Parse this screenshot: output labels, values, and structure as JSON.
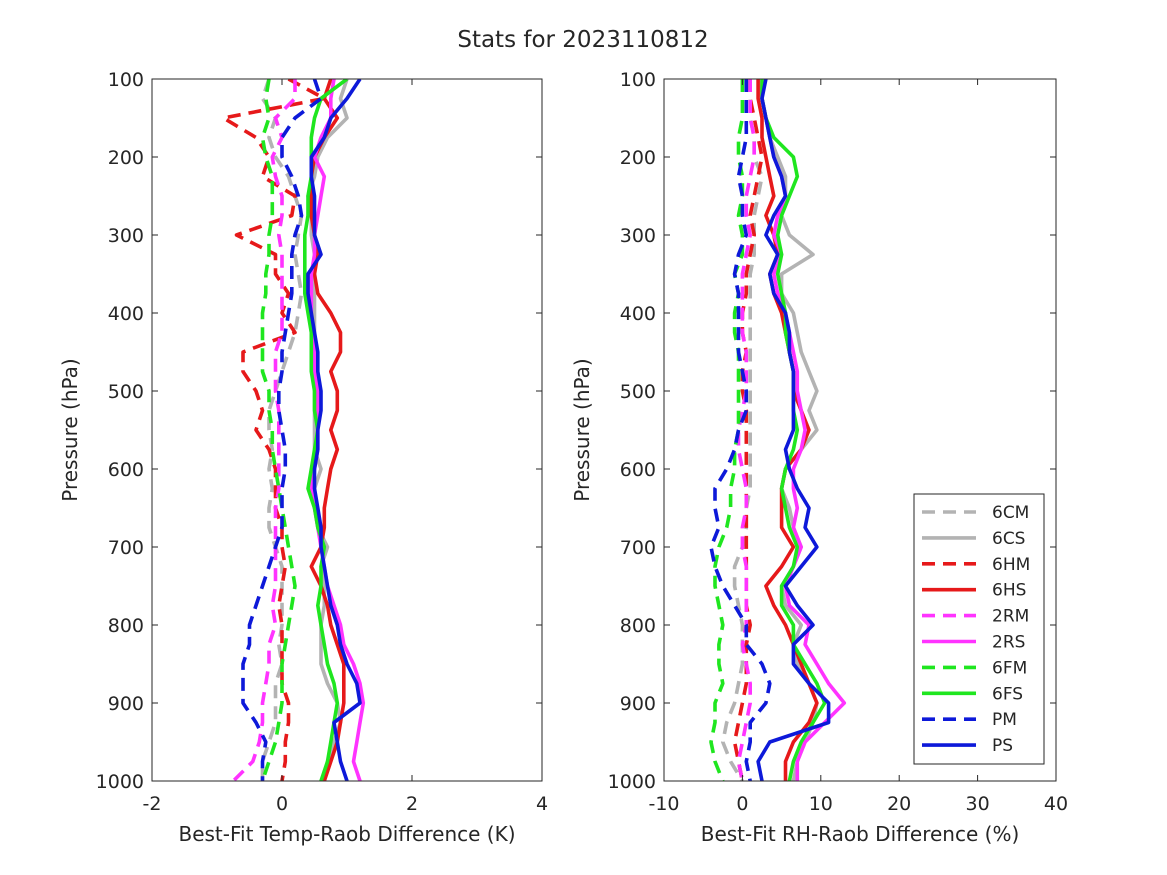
{
  "figure": {
    "title": "Stats for 2023110812"
  },
  "styles": {
    "6CM": {
      "color": "#b3b3b3",
      "dash": true
    },
    "6CS": {
      "color": "#b3b3b3",
      "dash": false
    },
    "6HM": {
      "color": "#e6191a",
      "dash": true
    },
    "6HS": {
      "color": "#e6191a",
      "dash": false
    },
    "2RM": {
      "color": "#ff33ff",
      "dash": true
    },
    "2RS": {
      "color": "#ff33ff",
      "dash": false
    },
    "6FM": {
      "color": "#1fe61f",
      "dash": true
    },
    "6FS": {
      "color": "#1fe61f",
      "dash": false
    },
    "PM": {
      "color": "#0d19d9",
      "dash": true
    },
    "PS": {
      "color": "#0d19d9",
      "dash": false
    }
  },
  "legend": {
    "entries": [
      "6CM",
      "6CS",
      "6HM",
      "6HS",
      "2RM",
      "2RS",
      "6FM",
      "6FS",
      "PM",
      "PS"
    ],
    "placement": "bottom-right of right panel"
  },
  "chart_data": [
    {
      "type": "line",
      "xlabel": "Best-Fit Temp-Raob Difference (K)",
      "ylabel": "Pressure (hPa)",
      "xlim": [
        -2,
        4
      ],
      "ylim": [
        100,
        1000
      ],
      "y_reversed": true,
      "xticks": [
        "-2",
        "0",
        "2",
        "4"
      ],
      "yticks": [
        "100",
        "200",
        "300",
        "400",
        "500",
        "600",
        "700",
        "800",
        "900",
        "1000"
      ],
      "p": [
        100,
        125,
        150,
        175,
        200,
        225,
        250,
        275,
        300,
        325,
        350,
        375,
        400,
        425,
        450,
        475,
        500,
        525,
        550,
        575,
        600,
        625,
        650,
        675,
        700,
        725,
        750,
        775,
        800,
        825,
        850,
        875,
        900,
        925,
        950,
        975,
        1000
      ],
      "series": [
        {
          "name": "6CM",
          "x": [
            -0.2,
            -0.3,
            -0.1,
            -0.2,
            -0.1,
            0.1,
            0.2,
            0.3,
            0.25,
            0.2,
            0.25,
            0.3,
            0.25,
            0.2,
            0.1,
            0.0,
            -0.1,
            -0.2,
            -0.2,
            -0.15,
            -0.2,
            -0.15,
            -0.2,
            -0.2,
            -0.1,
            0.0,
            0.0,
            0.0,
            0.0,
            -0.05,
            0.0,
            -0.1,
            -0.1,
            -0.1,
            -0.2,
            -0.3,
            -0.3
          ]
        },
        {
          "name": "6CS",
          "x": [
            1.0,
            0.9,
            1.0,
            0.7,
            0.55,
            0.5,
            0.4,
            0.45,
            0.45,
            0.5,
            0.5,
            0.5,
            0.5,
            0.5,
            0.5,
            0.5,
            0.5,
            0.5,
            0.5,
            0.5,
            0.6,
            0.5,
            0.5,
            0.55,
            0.7,
            0.6,
            0.65,
            0.65,
            0.6,
            0.6,
            0.6,
            0.7,
            0.85,
            0.9,
            0.8,
            0.7,
            0.65
          ]
        },
        {
          "name": "6HM",
          "x": [
            0.1,
            0.65,
            -0.9,
            -0.4,
            -0.2,
            -0.3,
            0.2,
            0.15,
            -0.7,
            -0.1,
            -0.1,
            0.1,
            0.0,
            0.2,
            -0.6,
            -0.6,
            -0.4,
            -0.3,
            -0.4,
            -0.2,
            -0.1,
            -0.1,
            -0.1,
            0.0,
            0.0,
            0.05,
            0.0,
            -0.05,
            0.0,
            0.0,
            0.0,
            0.0,
            0.1,
            0.1,
            0.05,
            0.05,
            0.0
          ]
        },
        {
          "name": "6HS",
          "x": [
            0.75,
            0.65,
            0.85,
            0.65,
            0.5,
            0.45,
            0.45,
            0.45,
            0.5,
            0.55,
            0.5,
            0.55,
            0.75,
            0.9,
            0.9,
            0.75,
            0.85,
            0.85,
            0.75,
            0.85,
            0.75,
            0.7,
            0.65,
            0.65,
            0.6,
            0.45,
            0.6,
            0.7,
            0.75,
            0.85,
            0.95,
            0.95,
            0.95,
            0.9,
            0.85,
            0.75,
            0.65
          ]
        },
        {
          "name": "2RM",
          "x": [
            0.2,
            0.2,
            -0.1,
            0.0,
            -0.15,
            -0.1,
            0.0,
            0.0,
            -0.05,
            0.0,
            0.0,
            0.0,
            0.0,
            0.0,
            -0.1,
            -0.1,
            -0.1,
            -0.05,
            -0.05,
            -0.05,
            -0.05,
            -0.05,
            -0.1,
            -0.1,
            -0.1,
            -0.1,
            -0.1,
            -0.15,
            -0.1,
            -0.2,
            -0.2,
            -0.25,
            -0.3,
            -0.3,
            -0.35,
            -0.45,
            -0.75
          ]
        },
        {
          "name": "2RS",
          "x": [
            0.8,
            0.75,
            0.75,
            0.6,
            0.5,
            0.65,
            0.6,
            0.55,
            0.5,
            0.5,
            0.45,
            0.45,
            0.45,
            0.45,
            0.5,
            0.5,
            0.55,
            0.55,
            0.55,
            0.55,
            0.5,
            0.45,
            0.5,
            0.55,
            0.6,
            0.65,
            0.7,
            0.8,
            0.9,
            0.95,
            1.1,
            1.2,
            1.25,
            1.2,
            1.15,
            1.1,
            1.2
          ]
        },
        {
          "name": "6FM",
          "x": [
            -0.2,
            -0.25,
            -0.2,
            -0.3,
            -0.25,
            -0.15,
            -0.15,
            -0.15,
            -0.2,
            -0.2,
            -0.25,
            -0.25,
            -0.3,
            -0.3,
            -0.3,
            -0.3,
            -0.2,
            -0.2,
            -0.15,
            -0.15,
            -0.1,
            -0.05,
            0.0,
            0.05,
            0.1,
            0.15,
            0.2,
            0.15,
            0.1,
            0.05,
            0.0,
            0.0,
            0.0,
            -0.05,
            -0.1,
            -0.2,
            -0.3
          ]
        },
        {
          "name": "6FS",
          "x": [
            1.0,
            0.6,
            0.5,
            0.45,
            0.45,
            0.45,
            0.4,
            0.4,
            0.35,
            0.35,
            0.35,
            0.35,
            0.4,
            0.45,
            0.45,
            0.45,
            0.5,
            0.5,
            0.55,
            0.5,
            0.45,
            0.4,
            0.5,
            0.55,
            0.65,
            0.6,
            0.6,
            0.55,
            0.6,
            0.65,
            0.7,
            0.8,
            0.85,
            0.8,
            0.75,
            0.7,
            0.6
          ]
        },
        {
          "name": "PM",
          "x": [
            0.5,
            0.6,
            0.2,
            0.0,
            0.0,
            0.15,
            0.25,
            0.3,
            0.2,
            0.15,
            0.15,
            0.15,
            0.1,
            0.05,
            0.0,
            0.0,
            -0.05,
            -0.05,
            0.0,
            0.05,
            0.05,
            0.0,
            0.0,
            0.0,
            -0.1,
            -0.2,
            -0.3,
            -0.4,
            -0.5,
            -0.5,
            -0.6,
            -0.6,
            -0.6,
            -0.4,
            -0.25,
            -0.3,
            -0.3
          ]
        },
        {
          "name": "PS",
          "x": [
            1.2,
            1.0,
            0.75,
            0.65,
            0.45,
            0.45,
            0.5,
            0.5,
            0.5,
            0.6,
            0.4,
            0.4,
            0.45,
            0.5,
            0.55,
            0.55,
            0.6,
            0.6,
            0.55,
            0.55,
            0.5,
            0.5,
            0.55,
            0.6,
            0.6,
            0.65,
            0.7,
            0.75,
            0.85,
            0.9,
            1.0,
            1.15,
            1.2,
            0.8,
            0.85,
            0.9,
            1.0
          ]
        }
      ]
    },
    {
      "type": "line",
      "xlabel": "Best-Fit RH-Raob Difference (%)",
      "ylabel": "Pressure (hPa)",
      "xlim": [
        -10,
        40
      ],
      "ylim": [
        100,
        1000
      ],
      "y_reversed": true,
      "xticks": [
        "-10",
        "0",
        "10",
        "20",
        "30",
        "40"
      ],
      "yticks": [
        "100",
        "200",
        "300",
        "400",
        "500",
        "600",
        "700",
        "800",
        "900",
        "1000"
      ],
      "p": [
        100,
        125,
        150,
        175,
        200,
        225,
        250,
        275,
        300,
        325,
        350,
        375,
        400,
        425,
        450,
        475,
        500,
        525,
        550,
        575,
        600,
        625,
        650,
        675,
        700,
        725,
        750,
        775,
        800,
        825,
        850,
        875,
        900,
        925,
        950,
        975,
        1000
      ],
      "series": [
        {
          "name": "6CM",
          "x": [
            0.5,
            1.0,
            1.0,
            1.5,
            1.5,
            2.5,
            2.0,
            1.5,
            1.5,
            1.5,
            1.0,
            1.0,
            1.0,
            1.0,
            1.0,
            1.0,
            1.0,
            1.0,
            1.0,
            1.0,
            1.0,
            1.0,
            0.5,
            0.5,
            0.0,
            -1.0,
            -1.0,
            -0.5,
            0.0,
            0.0,
            0.0,
            -0.5,
            -1.0,
            -2.0,
            -2.5,
            -1.5,
            0.0
          ]
        },
        {
          "name": "6CS",
          "x": [
            2.0,
            2.5,
            3.0,
            3.5,
            4.5,
            5.5,
            5.5,
            5.0,
            6.0,
            9.0,
            5.0,
            5.0,
            6.5,
            7.0,
            7.5,
            8.5,
            9.5,
            8.5,
            9.5,
            7.5,
            5.5,
            5.0,
            6.0,
            6.5,
            7.5,
            6.5,
            5.0,
            5.5,
            7.5,
            6.5,
            7.0,
            8.5,
            9.5,
            9.0,
            8.0,
            7.0,
            6.5
          ]
        },
        {
          "name": "6HM",
          "x": [
            1.0,
            1.0,
            1.5,
            2.0,
            2.5,
            2.0,
            1.5,
            1.0,
            1.5,
            1.0,
            0.5,
            0.5,
            0.0,
            0.0,
            0.5,
            0.0,
            0.0,
            0.5,
            0.5,
            0.5,
            0.5,
            0.5,
            0.5,
            0.5,
            0.5,
            0.5,
            0.5,
            0.5,
            1.0,
            0.5,
            0.5,
            0.5,
            0.0,
            -0.5,
            -1.0,
            -0.5,
            0.0
          ]
        },
        {
          "name": "6HS",
          "x": [
            2.0,
            2.0,
            2.5,
            2.5,
            3.0,
            3.5,
            4.0,
            3.0,
            4.0,
            4.5,
            3.5,
            4.0,
            5.0,
            5.5,
            6.0,
            6.5,
            6.5,
            7.5,
            8.5,
            7.5,
            5.5,
            5.0,
            5.0,
            5.0,
            6.5,
            5.0,
            3.0,
            4.0,
            5.5,
            6.5,
            7.5,
            8.5,
            9.5,
            8.5,
            6.5,
            5.5,
            5.5
          ]
        },
        {
          "name": "2RM",
          "x": [
            1.0,
            1.0,
            1.0,
            1.5,
            1.5,
            1.0,
            0.5,
            0.5,
            1.0,
            0.5,
            0.0,
            0.0,
            0.0,
            0.0,
            0.5,
            0.5,
            0.5,
            0.0,
            -0.5,
            -0.5,
            0.0,
            0.5,
            0.5,
            0.0,
            0.0,
            0.5,
            0.5,
            0.5,
            0.5,
            0.0,
            0.5,
            1.0,
            1.0,
            0.5,
            0.0,
            -0.5,
            0.0
          ]
        },
        {
          "name": "2RS",
          "x": [
            2.5,
            2.5,
            3.0,
            3.5,
            4.0,
            5.0,
            5.5,
            4.5,
            4.0,
            5.0,
            4.0,
            4.5,
            5.5,
            6.0,
            6.5,
            7.0,
            7.0,
            7.5,
            8.0,
            7.5,
            6.5,
            6.5,
            7.0,
            6.5,
            7.5,
            6.5,
            5.5,
            6.0,
            8.5,
            8.0,
            9.5,
            11.0,
            13.0,
            10.5,
            8.0,
            7.0,
            7.0
          ]
        },
        {
          "name": "6FM",
          "x": [
            0.0,
            0.0,
            0.0,
            -0.5,
            -0.5,
            0.0,
            0.0,
            -0.5,
            0.0,
            0.0,
            -1.0,
            -0.5,
            -1.0,
            -1.0,
            -0.5,
            -0.5,
            -0.5,
            -0.5,
            -0.5,
            -1.0,
            -1.0,
            -1.5,
            -1.5,
            -2.0,
            -3.0,
            -3.5,
            -3.5,
            -3.0,
            -2.5,
            -3.0,
            -3.0,
            -2.5,
            -3.5,
            -3.5,
            -4.0,
            -3.5,
            -2.5
          ]
        },
        {
          "name": "6FS",
          "x": [
            2.5,
            2.5,
            3.0,
            4.0,
            6.5,
            7.0,
            6.0,
            5.0,
            4.5,
            5.0,
            4.5,
            5.0,
            5.5,
            5.5,
            6.0,
            6.5,
            6.5,
            6.5,
            7.0,
            6.5,
            5.5,
            5.0,
            5.5,
            6.0,
            7.0,
            6.5,
            5.0,
            5.0,
            6.5,
            6.5,
            8.0,
            9.5,
            10.5,
            9.0,
            7.5,
            6.5,
            6.0
          ]
        },
        {
          "name": "PM",
          "x": [
            0.5,
            0.5,
            0.5,
            0.5,
            0.0,
            -0.5,
            0.0,
            0.0,
            0.5,
            -0.5,
            -1.0,
            -0.5,
            -0.5,
            -0.5,
            -0.5,
            0.0,
            0.5,
            0.5,
            -0.5,
            -1.0,
            -2.0,
            -3.5,
            -3.5,
            -3.0,
            -4.0,
            -3.5,
            -2.5,
            -1.0,
            0.5,
            0.5,
            2.5,
            3.5,
            3.0,
            1.0,
            1.0,
            0.5,
            1.0
          ]
        },
        {
          "name": "PS",
          "x": [
            3.0,
            2.5,
            3.0,
            3.5,
            4.0,
            5.0,
            5.5,
            4.0,
            3.0,
            4.5,
            3.5,
            4.0,
            5.5,
            6.0,
            6.0,
            6.5,
            6.5,
            6.5,
            6.5,
            5.5,
            6.0,
            7.0,
            8.5,
            8.0,
            9.5,
            7.5,
            5.5,
            7.0,
            9.0,
            6.5,
            6.5,
            8.5,
            11.0,
            11.0,
            3.5,
            2.0,
            2.5
          ]
        }
      ]
    }
  ]
}
